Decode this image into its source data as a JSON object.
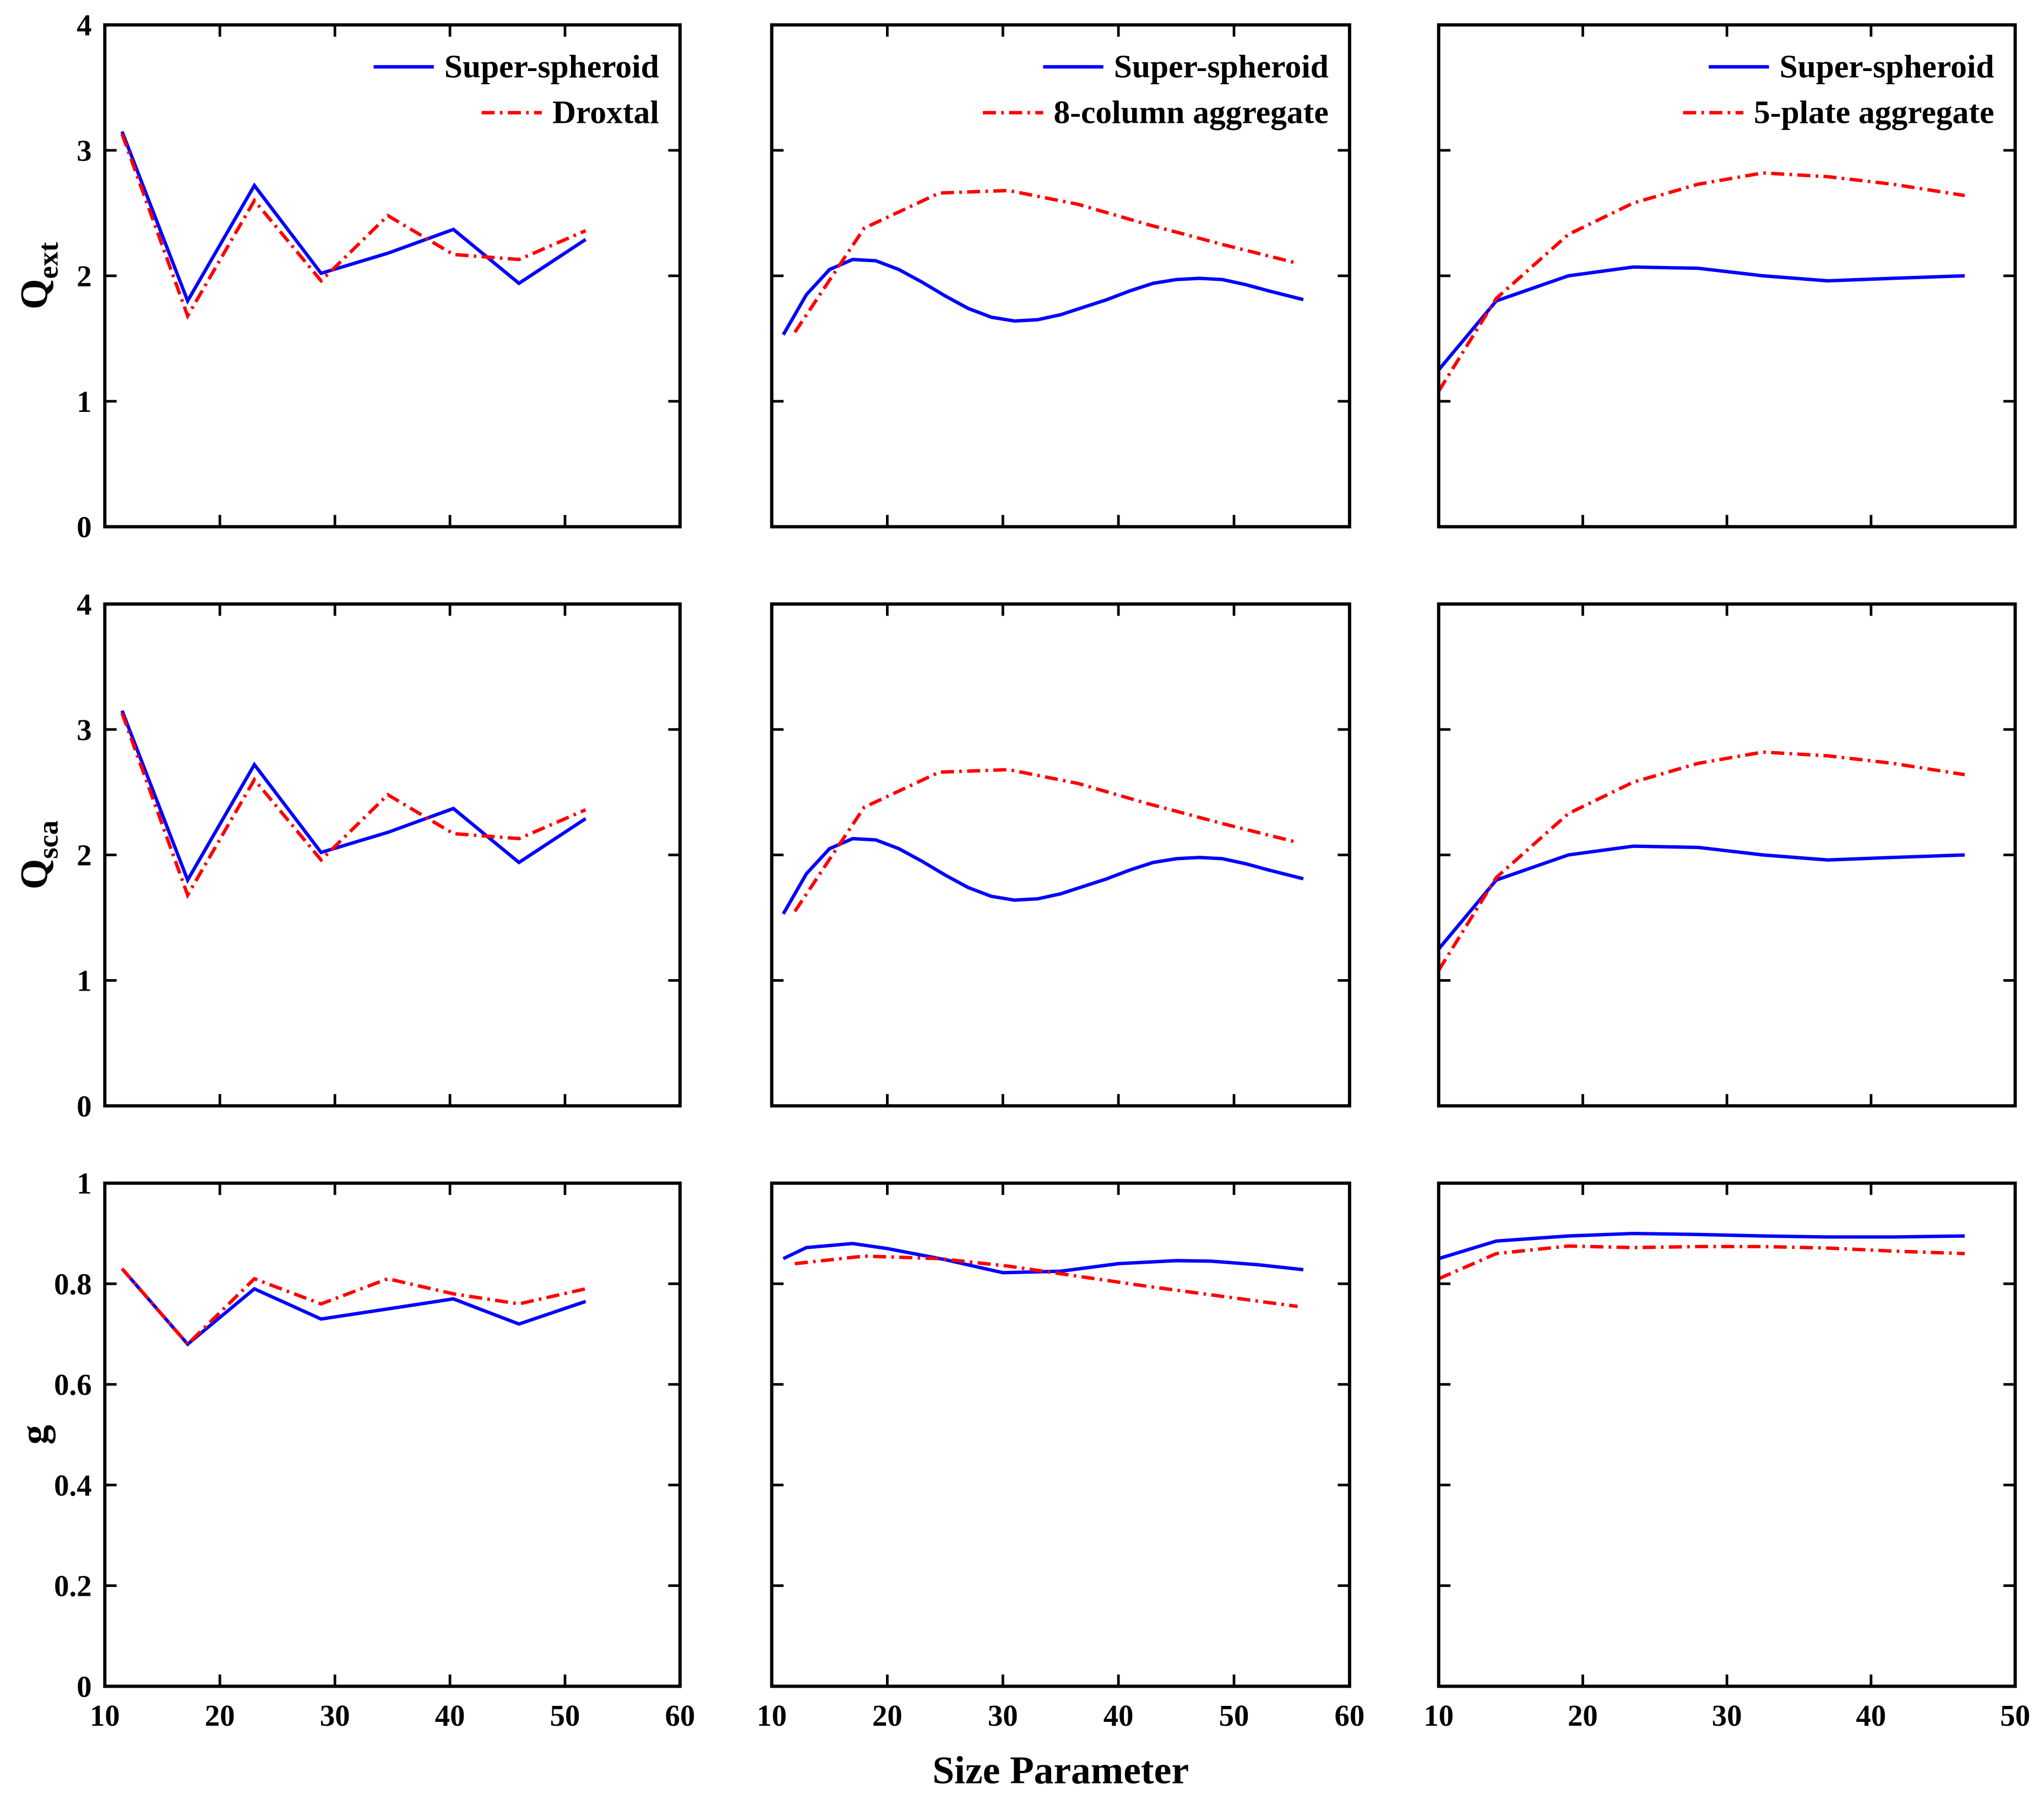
{
  "chart_data": [
    {
      "type": "line",
      "ylabel": "Q",
      "ylabel_sub": "ext",
      "legend": "upper right",
      "show_xtick_labels": false,
      "show_ytick_labels": true,
      "x": [
        11.5,
        17.2,
        23,
        28.8,
        34.6,
        40.3,
        46,
        51.8
      ],
      "series": [
        {
          "name": "Super-spheroid",
          "color": "#0000ff",
          "linestyle": "solid",
          "values": [
            3.15,
            1.8,
            2.72,
            2.02,
            2.18,
            2.37,
            1.94,
            2.29
          ]
        },
        {
          "name": "Droxtal",
          "color": "#ff0000",
          "linestyle": "dashdot",
          "values": [
            3.13,
            1.68,
            2.6,
            1.96,
            2.48,
            2.17,
            2.13,
            2.36
          ]
        }
      ],
      "xlim": [
        10,
        60
      ],
      "xticks": [
        10,
        20,
        30,
        40,
        50,
        60
      ],
      "ylim": [
        0,
        4
      ],
      "yticks": [
        0,
        1,
        2,
        3,
        4
      ]
    },
    {
      "type": "line",
      "legend": "upper right",
      "show_xtick_labels": false,
      "show_ytick_labels": false,
      "series": [
        {
          "name": "Super-spheroid",
          "color": "#0000ff",
          "linestyle": "solid",
          "x": [
            11,
            13,
            15,
            17,
            19,
            21,
            23,
            25,
            27,
            29,
            31,
            33,
            35,
            37,
            39,
            41,
            43,
            45,
            47,
            49,
            51,
            53,
            56
          ],
          "values": [
            1.53,
            1.85,
            2.05,
            2.13,
            2.12,
            2.05,
            1.95,
            1.84,
            1.74,
            1.67,
            1.64,
            1.65,
            1.69,
            1.75,
            1.81,
            1.88,
            1.94,
            1.97,
            1.98,
            1.97,
            1.93,
            1.88,
            1.81
          ]
        },
        {
          "name": "8-column aggregate",
          "color": "#ff0000",
          "linestyle": "dashdot",
          "x": [
            12,
            18,
            24.5,
            30.5,
            36.5,
            42.5,
            49,
            55.5
          ],
          "values": [
            1.55,
            2.38,
            2.66,
            2.68,
            2.57,
            2.41,
            2.25,
            2.1
          ]
        }
      ],
      "xlim": [
        10,
        60
      ],
      "xticks": [
        10,
        20,
        30,
        40,
        50,
        60
      ],
      "ylim": [
        0,
        4
      ],
      "yticks": [
        0,
        1,
        2,
        3,
        4
      ]
    },
    {
      "type": "line",
      "legend": "upper right",
      "show_xtick_labels": false,
      "show_ytick_labels": false,
      "x": [
        10,
        14,
        19,
        23.5,
        28,
        32.5,
        37,
        41.5,
        46.5
      ],
      "series": [
        {
          "name": "Super-spheroid",
          "color": "#0000ff",
          "linestyle": "solid",
          "values": [
            1.25,
            1.8,
            2.0,
            2.07,
            2.06,
            2.0,
            1.96,
            1.98,
            2.0
          ]
        },
        {
          "name": "5-plate aggregate",
          "color": "#ff0000",
          "linestyle": "dashdot",
          "values": [
            1.08,
            1.82,
            2.33,
            2.58,
            2.73,
            2.82,
            2.79,
            2.73,
            2.64
          ]
        }
      ],
      "xlim": [
        10,
        50
      ],
      "xticks": [
        10,
        20,
        30,
        40,
        50
      ],
      "ylim": [
        0,
        4
      ],
      "yticks": [
        0,
        1,
        2,
        3,
        4
      ]
    },
    {
      "type": "line",
      "ylabel": "Q",
      "ylabel_sub": "sca",
      "show_xtick_labels": false,
      "show_ytick_labels": true,
      "x": [
        11.5,
        17.2,
        23,
        28.8,
        34.6,
        40.3,
        46,
        51.8
      ],
      "series": [
        {
          "color": "#0000ff",
          "linestyle": "solid",
          "values": [
            3.15,
            1.8,
            2.72,
            2.02,
            2.18,
            2.37,
            1.94,
            2.29
          ]
        },
        {
          "color": "#ff0000",
          "linestyle": "dashdot",
          "values": [
            3.13,
            1.68,
            2.6,
            1.96,
            2.48,
            2.17,
            2.13,
            2.36
          ]
        }
      ],
      "xlim": [
        10,
        60
      ],
      "xticks": [
        10,
        20,
        30,
        40,
        50,
        60
      ],
      "ylim": [
        0,
        4
      ],
      "yticks": [
        0,
        1,
        2,
        3,
        4
      ]
    },
    {
      "type": "line",
      "show_xtick_labels": false,
      "show_ytick_labels": false,
      "series": [
        {
          "color": "#0000ff",
          "linestyle": "solid",
          "x": [
            11,
            13,
            15,
            17,
            19,
            21,
            23,
            25,
            27,
            29,
            31,
            33,
            35,
            37,
            39,
            41,
            43,
            45,
            47,
            49,
            51,
            53,
            56
          ],
          "values": [
            1.53,
            1.85,
            2.05,
            2.13,
            2.12,
            2.05,
            1.95,
            1.84,
            1.74,
            1.67,
            1.64,
            1.65,
            1.69,
            1.75,
            1.81,
            1.88,
            1.94,
            1.97,
            1.98,
            1.97,
            1.93,
            1.88,
            1.81
          ]
        },
        {
          "color": "#ff0000",
          "linestyle": "dashdot",
          "x": [
            12,
            18,
            24.5,
            30.5,
            36.5,
            42.5,
            49,
            55.5
          ],
          "values": [
            1.55,
            2.38,
            2.66,
            2.68,
            2.57,
            2.41,
            2.25,
            2.1
          ]
        }
      ],
      "xlim": [
        10,
        60
      ],
      "xticks": [
        10,
        20,
        30,
        40,
        50,
        60
      ],
      "ylim": [
        0,
        4
      ],
      "yticks": [
        0,
        1,
        2,
        3,
        4
      ]
    },
    {
      "type": "line",
      "show_xtick_labels": false,
      "show_ytick_labels": false,
      "x": [
        10,
        14,
        19,
        23.5,
        28,
        32.5,
        37,
        41.5,
        46.5
      ],
      "series": [
        {
          "color": "#0000ff",
          "linestyle": "solid",
          "values": [
            1.25,
            1.8,
            2.0,
            2.07,
            2.06,
            2.0,
            1.96,
            1.98,
            2.0
          ]
        },
        {
          "color": "#ff0000",
          "linestyle": "dashdot",
          "values": [
            1.08,
            1.82,
            2.33,
            2.58,
            2.73,
            2.82,
            2.79,
            2.73,
            2.64
          ]
        }
      ],
      "xlim": [
        10,
        50
      ],
      "xticks": [
        10,
        20,
        30,
        40,
        50
      ],
      "ylim": [
        0,
        4
      ],
      "yticks": [
        0,
        1,
        2,
        3,
        4
      ]
    },
    {
      "type": "line",
      "ylabel": "g",
      "show_xtick_labels": true,
      "show_ytick_labels": true,
      "x": [
        11.5,
        17.2,
        23,
        28.8,
        34.6,
        40.3,
        46,
        51.8
      ],
      "series": [
        {
          "color": "#0000ff",
          "linestyle": "solid",
          "values": [
            0.83,
            0.68,
            0.79,
            0.73,
            0.75,
            0.77,
            0.72,
            0.765
          ]
        },
        {
          "color": "#ff0000",
          "linestyle": "dashdot",
          "values": [
            0.83,
            0.68,
            0.81,
            0.76,
            0.81,
            0.78,
            0.76,
            0.79
          ]
        }
      ],
      "xlim": [
        10,
        60
      ],
      "xticks": [
        10,
        20,
        30,
        40,
        50,
        60
      ],
      "ylim": [
        0,
        1
      ],
      "yticks": [
        0,
        0.2,
        0.4,
        0.6,
        0.8,
        1
      ]
    },
    {
      "type": "line",
      "xlabel": "Size Parameter",
      "show_xtick_labels": true,
      "show_ytick_labels": false,
      "series": [
        {
          "color": "#0000ff",
          "linestyle": "solid",
          "x": [
            11,
            13,
            17,
            20,
            25,
            30,
            35,
            40,
            45,
            48,
            52,
            56
          ],
          "values": [
            0.85,
            0.872,
            0.88,
            0.87,
            0.848,
            0.822,
            0.825,
            0.84,
            0.846,
            0.845,
            0.838,
            0.828
          ]
        },
        {
          "color": "#ff0000",
          "linestyle": "dashdot",
          "x": [
            12,
            18,
            24.5,
            30.5,
            36.5,
            42.5,
            49,
            55.5
          ],
          "values": [
            0.84,
            0.855,
            0.85,
            0.835,
            0.815,
            0.795,
            0.775,
            0.755
          ]
        }
      ],
      "xlim": [
        10,
        60
      ],
      "xticks": [
        10,
        20,
        30,
        40,
        50,
        60
      ],
      "ylim": [
        0,
        1
      ],
      "yticks": [
        0,
        0.2,
        0.4,
        0.6,
        0.8,
        1
      ]
    },
    {
      "type": "line",
      "show_xtick_labels": true,
      "show_ytick_labels": false,
      "x": [
        10,
        14,
        19,
        23.5,
        28,
        32.5,
        37,
        41.5,
        46.5
      ],
      "series": [
        {
          "color": "#0000ff",
          "linestyle": "solid",
          "values": [
            0.85,
            0.885,
            0.895,
            0.9,
            0.898,
            0.895,
            0.893,
            0.893,
            0.895
          ]
        },
        {
          "color": "#ff0000",
          "linestyle": "dashdot",
          "values": [
            0.81,
            0.86,
            0.875,
            0.872,
            0.874,
            0.874,
            0.871,
            0.865,
            0.86
          ]
        }
      ],
      "xlim": [
        10,
        50
      ],
      "xticks": [
        10,
        20,
        30,
        40,
        50
      ],
      "ylim": [
        0,
        1
      ],
      "yticks": [
        0,
        0.2,
        0.4,
        0.6,
        0.8,
        1
      ]
    }
  ]
}
